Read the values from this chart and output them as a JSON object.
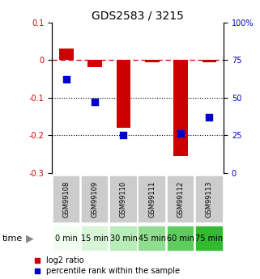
{
  "title": "GDS2583 / 3215",
  "samples": [
    "GSM99108",
    "GSM99109",
    "GSM99110",
    "GSM99111",
    "GSM99112",
    "GSM99113"
  ],
  "time_labels": [
    "0 min",
    "15 min",
    "30 min",
    "45 min",
    "60 min",
    "75 min"
  ],
  "log2_ratio": [
    0.03,
    -0.02,
    -0.18,
    -0.005,
    -0.255,
    -0.005
  ],
  "percentile_rank": [
    62,
    47,
    25,
    null,
    26,
    37
  ],
  "ylim_left": [
    -0.3,
    0.1
  ],
  "ylim_right": [
    0,
    100
  ],
  "yticks_left": [
    -0.3,
    -0.2,
    -0.1,
    0.0,
    0.1
  ],
  "yticks_right": [
    0,
    25,
    50,
    75,
    100
  ],
  "bar_color": "#cc0000",
  "dot_color": "#0000cc",
  "zero_line_color": "#cc0000",
  "dotted_line_color": "#000000",
  "bar_width": 0.5,
  "dot_size": 30,
  "legend_bar_label": "log2 ratio",
  "legend_dot_label": "percentile rank within the sample",
  "time_colors": [
    "#f0fff0",
    "#d8f5d8",
    "#b8ecb8",
    "#90dc90",
    "#60cc60",
    "#30bb30"
  ],
  "sample_bg_color": "#cccccc",
  "title_fontsize": 10,
  "tick_fontsize": 7,
  "sample_fontsize": 6,
  "time_fontsize": 7,
  "legend_fontsize": 7
}
